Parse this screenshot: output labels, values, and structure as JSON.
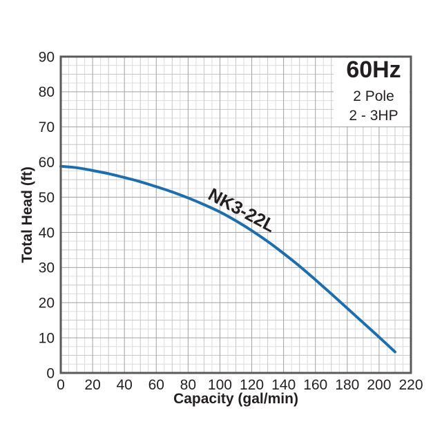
{
  "chart_data": {
    "type": "line",
    "xlabel": "Capacity (gal/min)",
    "ylabel": "Total Head (ft)",
    "xlim": [
      0,
      220
    ],
    "ylim": [
      0,
      90
    ],
    "x_ticks": [
      0,
      20,
      40,
      60,
      80,
      100,
      120,
      140,
      160,
      180,
      200,
      220
    ],
    "y_ticks": [
      0,
      10,
      20,
      30,
      40,
      50,
      60,
      70,
      80,
      90
    ],
    "x_minor_step": 5,
    "x_mid_step": 10,
    "y_minor_step": 2.5,
    "y_mid_step": 5,
    "grid": true,
    "legend_position": "none",
    "series": [
      {
        "name": "NK3-22L",
        "x": [
          0,
          10,
          20,
          30,
          40,
          50,
          60,
          70,
          80,
          90,
          100,
          110,
          120,
          130,
          140,
          150,
          160,
          170,
          180,
          190,
          200,
          210
        ],
        "y": [
          58.8,
          58.4,
          57.6,
          56.7,
          55.6,
          54.4,
          53.0,
          51.5,
          49.8,
          47.9,
          45.8,
          43.3,
          40.5,
          37.4,
          34.0,
          30.4,
          26.5,
          22.5,
          18.4,
          14.3,
          10.2,
          6.0
        ],
        "label_at": {
          "x": 112,
          "y": 44.8,
          "angle_deg": 28
        }
      }
    ],
    "annotation_box": {
      "frequency": "60Hz",
      "pole": "2 Pole",
      "horsepower": "2 - 3HP"
    }
  },
  "colors": {
    "curve": "#1c6eae",
    "curve_label": "#1c6eae",
    "grid_minor": "#dcdcdc",
    "grid_mid": "#c6c6c6",
    "grid_major": "#a0a0a0",
    "plot_border": "#58595b",
    "text": "#231f20",
    "background": "#ffffff"
  }
}
